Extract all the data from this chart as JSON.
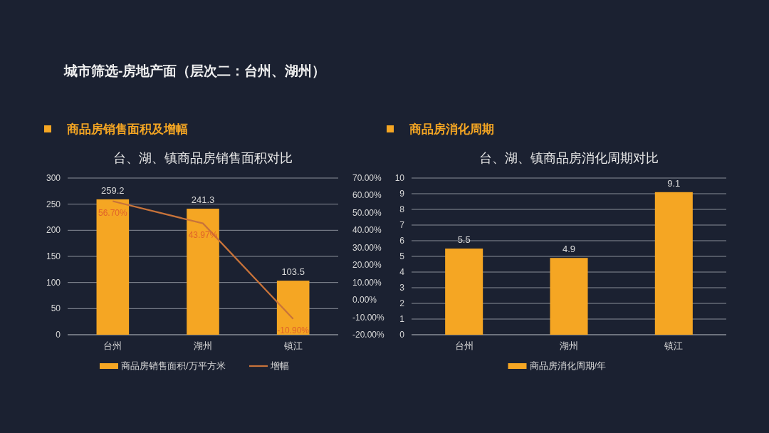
{
  "chart_data": [
    {
      "type": "bar",
      "title": "台、湖、镇商品房销售面积对比",
      "annotations": [
        "城市筛选-房地产面（层次二：台州、湖州）",
        "商品房销售面积及增幅"
      ],
      "categories": [
        "台州",
        "湖州",
        "镇江"
      ],
      "series": [
        {
          "name": "商品房销售面积/万平方米",
          "color": "#f5a623",
          "values": [
            259.2,
            241.3,
            103.5
          ],
          "value_labels": [
            "259.2",
            "241.3",
            "103.5"
          ]
        },
        {
          "name": "增幅",
          "type": "line",
          "axis": "y2",
          "color": "#c8733a",
          "values": [
            56.7,
            43.97,
            -10.9
          ],
          "value_labels": [
            "56.70%",
            "43.97%",
            "-10.90%"
          ]
        }
      ],
      "ylim": [
        0,
        300
      ],
      "yticks": [
        0,
        50,
        100,
        150,
        200,
        250,
        300
      ],
      "y2lim": [
        -20,
        70
      ],
      "y2ticks": [
        {
          "value": -20,
          "label": "-20.00%"
        },
        {
          "value": -10,
          "label": "-10.00%"
        },
        {
          "value": 0,
          "label": "0.00%"
        },
        {
          "value": 10,
          "label": "10.00%"
        },
        {
          "value": 20,
          "label": "20.00%"
        },
        {
          "value": 30,
          "label": "30.00%"
        },
        {
          "value": 40,
          "label": "40.00%"
        },
        {
          "value": 50,
          "label": "50.00%"
        },
        {
          "value": 60,
          "label": "60.00%"
        },
        {
          "value": 70,
          "label": "70.00%"
        }
      ],
      "grid": "y",
      "legend": "bottom"
    },
    {
      "type": "bar",
      "title": "台、湖、镇商品房消化周期对比",
      "annotations": [
        "商品房消化周期"
      ],
      "categories": [
        "台州",
        "湖州",
        "镇江"
      ],
      "series": [
        {
          "name": "商品房消化周期/年",
          "color": "#f5a623",
          "values": [
            5.5,
            4.9,
            9.1
          ],
          "value_labels": [
            "5.5",
            "4.9",
            "9.1"
          ]
        }
      ],
      "ylim": [
        0,
        10
      ],
      "yticks": [
        0,
        1,
        2,
        3,
        4,
        5,
        6,
        7,
        8,
        9,
        10
      ],
      "grid": "y",
      "legend": "bottom"
    }
  ]
}
